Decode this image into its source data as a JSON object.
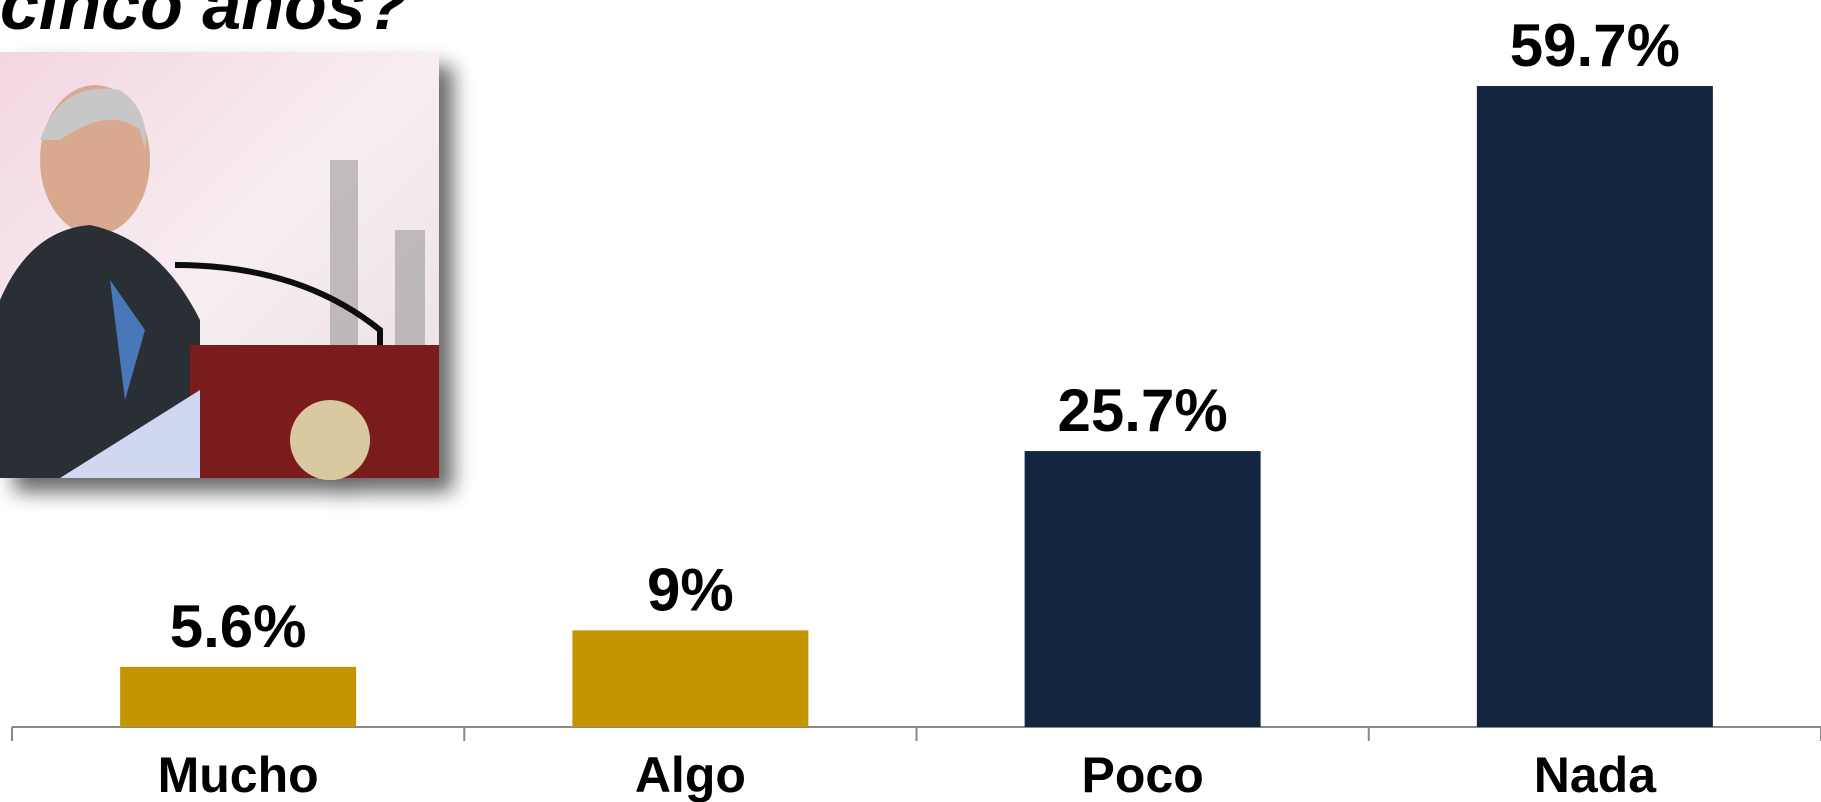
{
  "chart_data": {
    "type": "bar",
    "title": "cinco años?",
    "categories": [
      "Mucho",
      "Algo",
      "Poco",
      "Nada"
    ],
    "values": [
      5.6,
      9,
      25.7,
      59.7
    ],
    "value_labels": [
      "5.6%",
      "9%",
      "25.7%",
      "59.7%"
    ],
    "colors": [
      "#c59500",
      "#c59500",
      "#13253f",
      "#13253f"
    ]
  }
}
